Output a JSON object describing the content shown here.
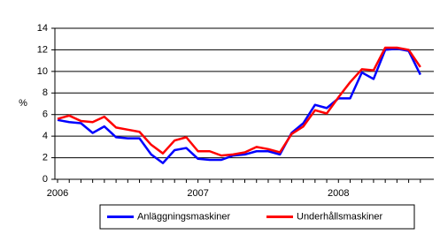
{
  "chart_data": {
    "type": "line",
    "y_label": "%",
    "categories": [
      "2006",
      null,
      null,
      null,
      null,
      null,
      null,
      null,
      null,
      null,
      null,
      null,
      "2007",
      null,
      null,
      null,
      null,
      null,
      null,
      null,
      null,
      null,
      null,
      null,
      "2008",
      null,
      null,
      null,
      null,
      null,
      null,
      null
    ],
    "series": [
      {
        "name": "Anläggningsmaskiner",
        "color": "#0000ff",
        "values": [
          5.5,
          5.3,
          5.2,
          4.3,
          4.9,
          3.9,
          3.8,
          3.8,
          2.3,
          1.5,
          2.7,
          2.9,
          1.9,
          1.8,
          1.8,
          2.2,
          2.3,
          2.6,
          2.6,
          2.3,
          4.3,
          5.2,
          6.9,
          6.6,
          7.5,
          7.5,
          9.9,
          9.3,
          12.0,
          12.1,
          11.9,
          9.7
        ]
      },
      {
        "name": "Underhållsmaskiner",
        "color": "#ff0000",
        "values": [
          5.6,
          5.9,
          5.4,
          5.3,
          5.8,
          4.8,
          4.6,
          4.4,
          3.2,
          2.4,
          3.6,
          3.9,
          2.6,
          2.6,
          2.2,
          2.3,
          2.5,
          3.0,
          2.8,
          2.5,
          4.2,
          4.9,
          6.4,
          6.1,
          7.6,
          9.0,
          10.2,
          10.1,
          12.2,
          12.2,
          12.0,
          10.4
        ]
      }
    ],
    "ylim": [
      0,
      14
    ],
    "yticks": [
      0,
      2,
      4,
      6,
      8,
      10,
      12,
      14
    ],
    "grid": true,
    "legend": "bottom"
  }
}
